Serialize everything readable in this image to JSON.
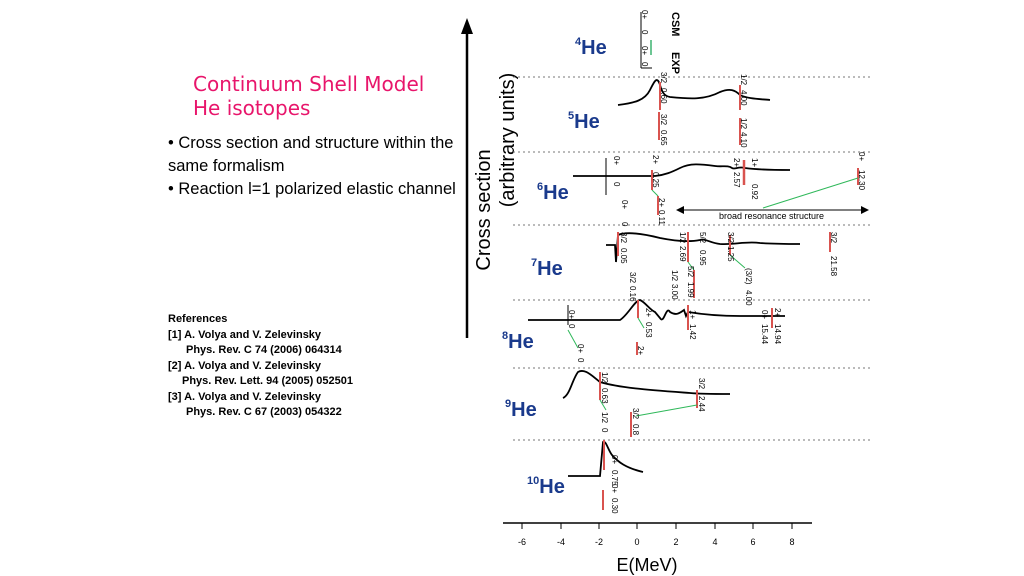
{
  "slide": {
    "title_line1": "Continuum Shell Model",
    "title_line2": "He isotopes",
    "bullets": [
      "• Cross section and structure within the same formalism",
      "• Reaction l=1 polarized elastic channel"
    ],
    "references": {
      "heading": "References",
      "items": [
        {
          "authors": "[1] A. Volya and V. Zelevinsky",
          "journal": "Phys. Rev. C 74 (2006) 064314"
        },
        {
          "authors": "[2] A. Volya and V. Zelevinsky",
          "journal": "Phys. Rev. Lett. 94 (2005) 052501"
        },
        {
          "authors": "[3] A. Volya and V. Zelevinsky",
          "journal": "Phys. Rev. C 67 (2003) 054322"
        }
      ]
    }
  },
  "figure": {
    "y_axis_label_line1": "Cross section",
    "y_axis_label_line2": "(arbitrary units)",
    "x_axis_label": "E(MeV)",
    "x_ticks": [
      "-6",
      "-4",
      "-2",
      "0",
      "2",
      "4",
      "6",
      "8"
    ],
    "column_headers": [
      "CSM",
      "EXP"
    ],
    "broad_resonance_label": "broad resonance structure",
    "isotopes": [
      {
        "mass": "4",
        "symbol": "He"
      },
      {
        "mass": "5",
        "symbol": "He"
      },
      {
        "mass": "6",
        "symbol": "He"
      },
      {
        "mass": "7",
        "symbol": "He"
      },
      {
        "mass": "8",
        "symbol": "He"
      },
      {
        "mass": "9",
        "symbol": "He"
      },
      {
        "mass": "10",
        "symbol": "He"
      }
    ],
    "level_labels": {
      "he4": [
        "0+",
        "0",
        "0+",
        "0"
      ],
      "he5": [
        "3/2",
        "0.60",
        "3/2",
        "0.65",
        "1/2",
        "4.00",
        "1/2",
        "4.10"
      ],
      "he6": [
        "0+",
        "0",
        "0+",
        "0",
        "2+",
        "0.25",
        "2+",
        "0.11",
        "2+",
        "2.57",
        "1+",
        "0.92",
        "0+",
        "12.30"
      ],
      "he7": [
        "3/2",
        "0.05",
        "3/2",
        "0.16",
        "1/2",
        "2.69",
        "5/2",
        "0.95",
        "1/2",
        "3.00",
        "5/2",
        "1.99",
        "3/2",
        "1.25",
        "(3/2)",
        "4.00",
        "3/2",
        "21.58"
      ],
      "he8": [
        "0+",
        "0",
        "0+",
        "0",
        "2+",
        "0.53",
        "2+",
        "1+",
        "1.42",
        "0+",
        "15.44",
        "2+",
        "14.94"
      ],
      "he9": [
        "1/2",
        "0.63",
        "1/2",
        "0",
        "3/2",
        "0.8",
        "3/2",
        "2.44"
      ],
      "he10": [
        "0+",
        "0.75",
        "0+",
        "0.30"
      ]
    },
    "colors": {
      "title": "#e8156b",
      "csm_marker": "#d9534f",
      "exp_marker": "#3cb371",
      "connector": "#2fb85a"
    }
  }
}
